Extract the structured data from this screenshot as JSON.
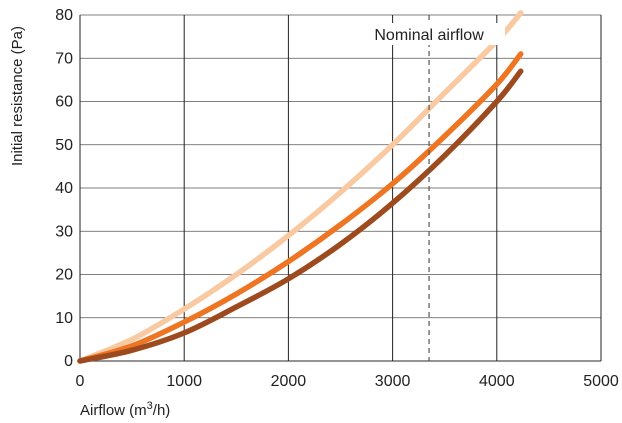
{
  "chart_data": {
    "type": "line",
    "title": "",
    "xlabel": "Airflow (m³/h)",
    "ylabel": "Initial resistance (Pa)",
    "xlim": [
      0,
      5000
    ],
    "ylim": [
      0,
      80
    ],
    "x_ticks": [
      0,
      1000,
      2000,
      3000,
      4000,
      5000
    ],
    "y_ticks": [
      0,
      10,
      20,
      30,
      40,
      50,
      60,
      70,
      80
    ],
    "grid": {
      "horizontal": true,
      "vertical": true
    },
    "legend": "none",
    "series": [
      {
        "color": "#F9C9A2",
        "x": [
          0,
          500,
          1000,
          1500,
          2000,
          2500,
          3000,
          3500,
          4000,
          4230
        ],
        "y": [
          0,
          5,
          12,
          20,
          29,
          39,
          50,
          62,
          74,
          80.5
        ]
      },
      {
        "color": "#EE7623",
        "x": [
          0,
          500,
          1000,
          1500,
          2000,
          2500,
          3000,
          3500,
          4000,
          4230
        ],
        "y": [
          0,
          3.5,
          9,
          15.5,
          23,
          31.5,
          41,
          52,
          64,
          71
        ]
      },
      {
        "color": "#9E4A1F",
        "x": [
          0,
          500,
          1000,
          1500,
          2000,
          2500,
          3000,
          3500,
          4000,
          4230
        ],
        "y": [
          0,
          2.5,
          6.5,
          12.5,
          19,
          27,
          36.5,
          47.5,
          60,
          67
        ]
      }
    ],
    "annotations": [
      {
        "text": "Nominal airflow",
        "x": 3350,
        "style": "dashed-vertical-line"
      }
    ]
  }
}
